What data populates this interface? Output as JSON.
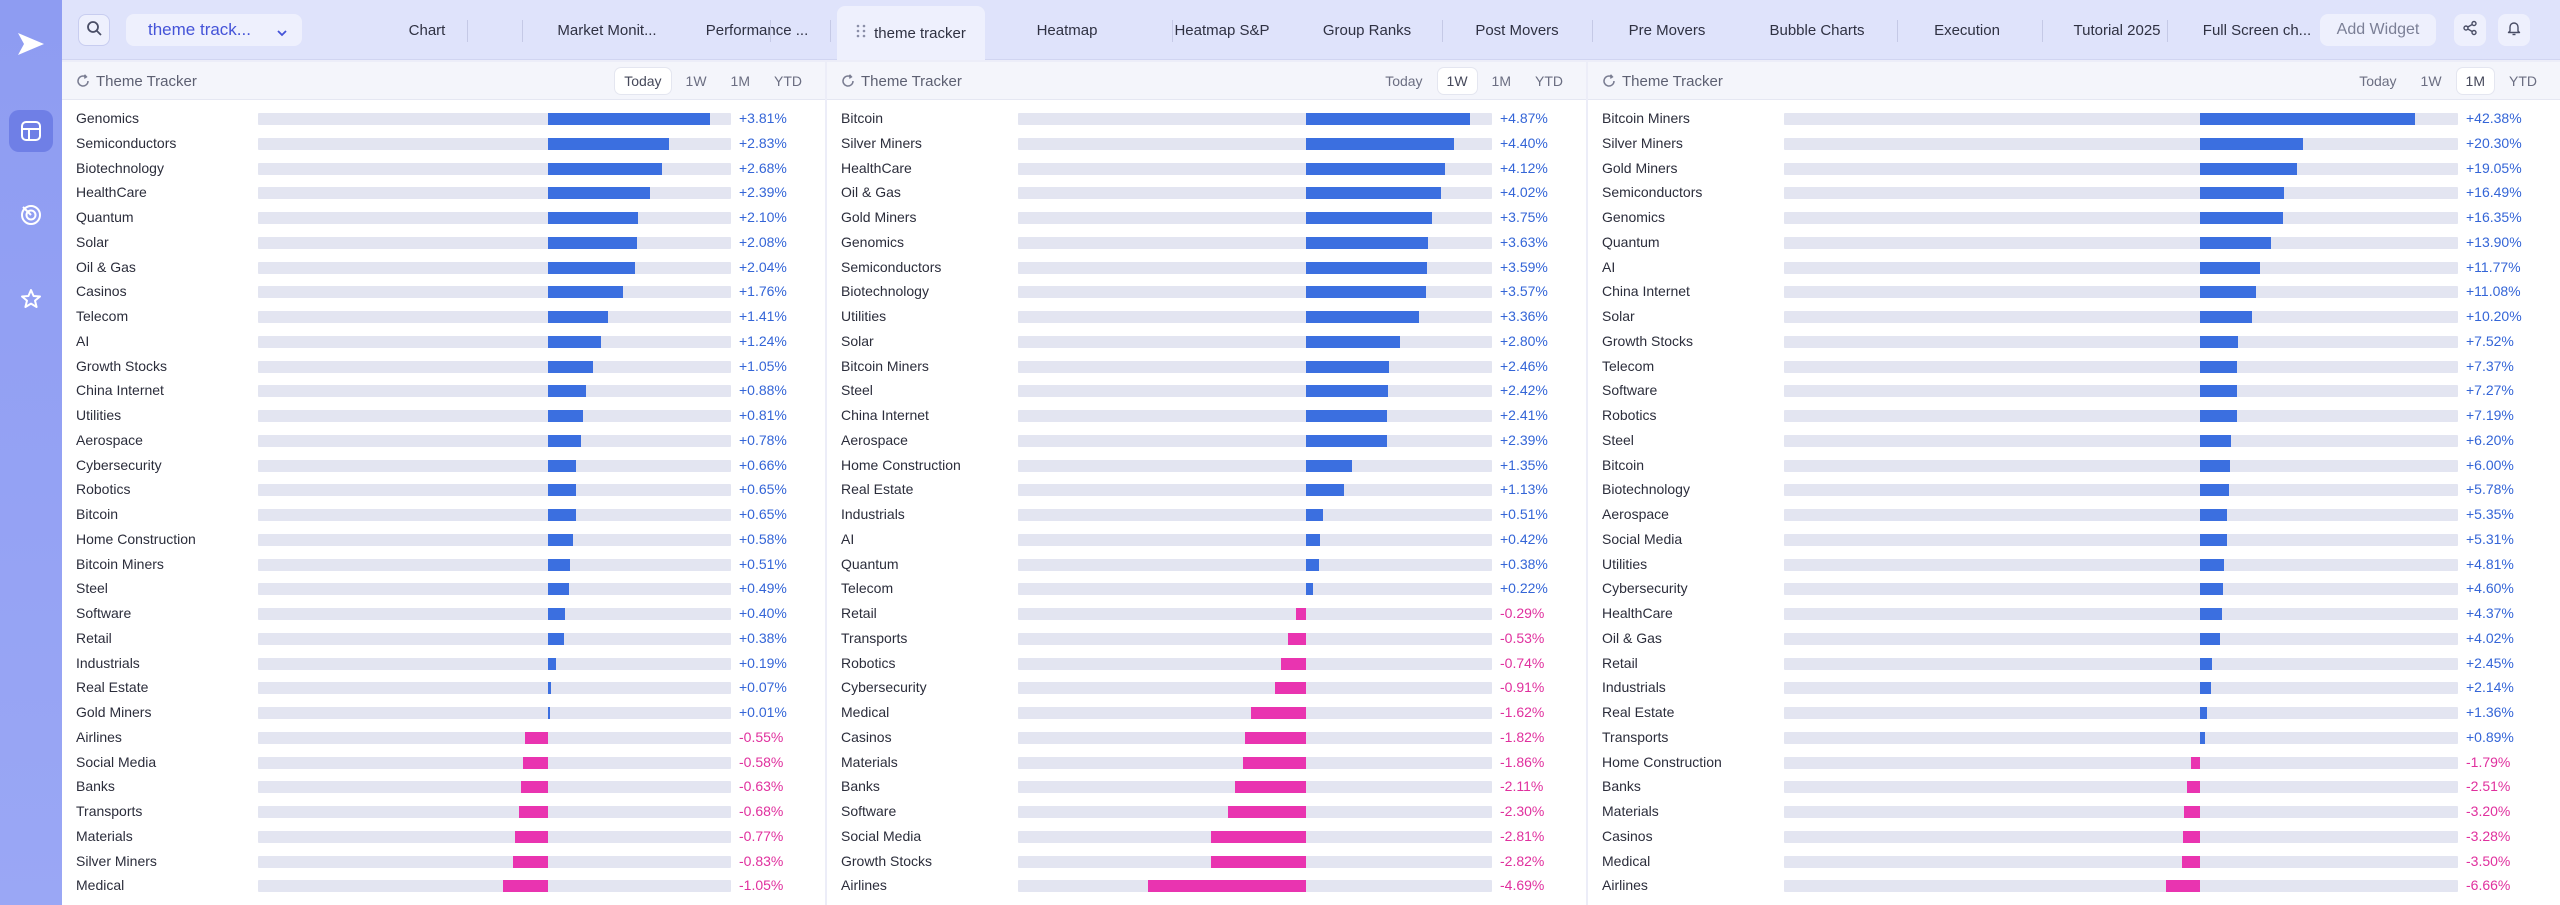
{
  "rail": {
    "items": [
      "logo-icon",
      "dashboard-icon",
      "radar-icon",
      "star-icon"
    ]
  },
  "topbar": {
    "workspace": "theme track...",
    "add_widget": "Add Widget",
    "tabs": [
      {
        "label": "Chart"
      },
      {
        "label": "Market Monit..."
      },
      {
        "label": "Performance ..."
      },
      {
        "label": "theme tracker",
        "active": true
      },
      {
        "label": "Heatmap"
      },
      {
        "label": "Heatmap S&P"
      },
      {
        "label": "Group Ranks"
      },
      {
        "label": "Post Movers"
      },
      {
        "label": "Pre Movers"
      },
      {
        "label": "Bubble Charts"
      },
      {
        "label": "Execution"
      },
      {
        "label": "Tutorial 2025"
      },
      {
        "label": "Full Screen ch..."
      }
    ]
  },
  "colors": {
    "positive": "#3b6fe0",
    "negative": "#e934b0",
    "rail": "#8e9cf2",
    "tab_active_text": "#4453d8"
  },
  "panels": [
    {
      "title": "Theme Tracker",
      "periods": [
        "Today",
        "1W",
        "1M",
        "YTD"
      ],
      "active_period": "Today",
      "max_abs": 4.2,
      "rows": [
        {
          "name": "Genomics",
          "value": 3.81,
          "label": "+3.81%"
        },
        {
          "name": "Semiconductors",
          "value": 2.83,
          "label": "+2.83%"
        },
        {
          "name": "Biotechnology",
          "value": 2.68,
          "label": "+2.68%"
        },
        {
          "name": "HealthCare",
          "value": 2.39,
          "label": "+2.39%"
        },
        {
          "name": "Quantum",
          "value": 2.1,
          "label": "+2.10%"
        },
        {
          "name": "Solar",
          "value": 2.08,
          "label": "+2.08%"
        },
        {
          "name": "Oil & Gas",
          "value": 2.04,
          "label": "+2.04%"
        },
        {
          "name": "Casinos",
          "value": 1.76,
          "label": "+1.76%"
        },
        {
          "name": "Telecom",
          "value": 1.41,
          "label": "+1.41%"
        },
        {
          "name": "AI",
          "value": 1.24,
          "label": "+1.24%"
        },
        {
          "name": "Growth Stocks",
          "value": 1.05,
          "label": "+1.05%"
        },
        {
          "name": "China Internet",
          "value": 0.88,
          "label": "+0.88%"
        },
        {
          "name": "Utilities",
          "value": 0.81,
          "label": "+0.81%"
        },
        {
          "name": "Aerospace",
          "value": 0.78,
          "label": "+0.78%"
        },
        {
          "name": "Cybersecurity",
          "value": 0.66,
          "label": "+0.66%"
        },
        {
          "name": "Robotics",
          "value": 0.65,
          "label": "+0.65%"
        },
        {
          "name": "Bitcoin",
          "value": 0.65,
          "label": "+0.65%"
        },
        {
          "name": "Home Construction",
          "value": 0.58,
          "label": "+0.58%"
        },
        {
          "name": "Bitcoin Miners",
          "value": 0.51,
          "label": "+0.51%"
        },
        {
          "name": "Steel",
          "value": 0.49,
          "label": "+0.49%"
        },
        {
          "name": "Software",
          "value": 0.4,
          "label": "+0.40%"
        },
        {
          "name": "Retail",
          "value": 0.38,
          "label": "+0.38%"
        },
        {
          "name": "Industrials",
          "value": 0.19,
          "label": "+0.19%"
        },
        {
          "name": "Real Estate",
          "value": 0.07,
          "label": "+0.07%"
        },
        {
          "name": "Gold Miners",
          "value": 0.01,
          "label": "+0.01%"
        },
        {
          "name": "Airlines",
          "value": -0.55,
          "label": "-0.55%"
        },
        {
          "name": "Social Media",
          "value": -0.58,
          "label": "-0.58%"
        },
        {
          "name": "Banks",
          "value": -0.63,
          "label": "-0.63%"
        },
        {
          "name": "Transports",
          "value": -0.68,
          "label": "-0.68%"
        },
        {
          "name": "Materials",
          "value": -0.77,
          "label": "-0.77%"
        },
        {
          "name": "Silver Miners",
          "value": -0.83,
          "label": "-0.83%"
        },
        {
          "name": "Medical",
          "value": -1.05,
          "label": "-1.05%"
        }
      ]
    },
    {
      "title": "Theme Tracker",
      "periods": [
        "Today",
        "1W",
        "1M",
        "YTD"
      ],
      "active_period": "1W",
      "max_abs": 5.4,
      "rows": [
        {
          "name": "Bitcoin",
          "value": 4.87,
          "label": "+4.87%"
        },
        {
          "name": "Silver Miners",
          "value": 4.4,
          "label": "+4.40%"
        },
        {
          "name": "HealthCare",
          "value": 4.12,
          "label": "+4.12%"
        },
        {
          "name": "Oil & Gas",
          "value": 4.02,
          "label": "+4.02%"
        },
        {
          "name": "Gold Miners",
          "value": 3.75,
          "label": "+3.75%"
        },
        {
          "name": "Genomics",
          "value": 3.63,
          "label": "+3.63%"
        },
        {
          "name": "Semiconductors",
          "value": 3.59,
          "label": "+3.59%"
        },
        {
          "name": "Biotechnology",
          "value": 3.57,
          "label": "+3.57%"
        },
        {
          "name": "Utilities",
          "value": 3.36,
          "label": "+3.36%"
        },
        {
          "name": "Solar",
          "value": 2.8,
          "label": "+2.80%"
        },
        {
          "name": "Bitcoin Miners",
          "value": 2.46,
          "label": "+2.46%"
        },
        {
          "name": "Steel",
          "value": 2.42,
          "label": "+2.42%"
        },
        {
          "name": "China Internet",
          "value": 2.41,
          "label": "+2.41%"
        },
        {
          "name": "Aerospace",
          "value": 2.39,
          "label": "+2.39%"
        },
        {
          "name": "Home Construction",
          "value": 1.35,
          "label": "+1.35%"
        },
        {
          "name": "Real Estate",
          "value": 1.13,
          "label": "+1.13%"
        },
        {
          "name": "Industrials",
          "value": 0.51,
          "label": "+0.51%"
        },
        {
          "name": "AI",
          "value": 0.42,
          "label": "+0.42%"
        },
        {
          "name": "Quantum",
          "value": 0.38,
          "label": "+0.38%"
        },
        {
          "name": "Telecom",
          "value": 0.22,
          "label": "+0.22%"
        },
        {
          "name": "Retail",
          "value": -0.29,
          "label": "-0.29%"
        },
        {
          "name": "Transports",
          "value": -0.53,
          "label": "-0.53%"
        },
        {
          "name": "Robotics",
          "value": -0.74,
          "label": "-0.74%"
        },
        {
          "name": "Cybersecurity",
          "value": -0.91,
          "label": "-0.91%"
        },
        {
          "name": "Medical",
          "value": -1.62,
          "label": "-1.62%"
        },
        {
          "name": "Casinos",
          "value": -1.82,
          "label": "-1.82%"
        },
        {
          "name": "Materials",
          "value": -1.86,
          "label": "-1.86%"
        },
        {
          "name": "Banks",
          "value": -2.11,
          "label": "-2.11%"
        },
        {
          "name": "Software",
          "value": -2.3,
          "label": "-2.30%"
        },
        {
          "name": "Social Media",
          "value": -2.81,
          "label": "-2.81%"
        },
        {
          "name": "Growth Stocks",
          "value": -2.82,
          "label": "-2.82%"
        },
        {
          "name": "Airlines",
          "value": -4.69,
          "label": "-4.69%"
        }
      ]
    },
    {
      "title": "Theme Tracker",
      "periods": [
        "Today",
        "1W",
        "1M",
        "YTD"
      ],
      "active_period": "1M",
      "max_abs": 50,
      "rows": [
        {
          "name": "Bitcoin Miners",
          "value": 42.38,
          "label": "+42.38%"
        },
        {
          "name": "Silver Miners",
          "value": 20.3,
          "label": "+20.30%"
        },
        {
          "name": "Gold Miners",
          "value": 19.05,
          "label": "+19.05%"
        },
        {
          "name": "Semiconductors",
          "value": 16.49,
          "label": "+16.49%"
        },
        {
          "name": "Genomics",
          "value": 16.35,
          "label": "+16.35%"
        },
        {
          "name": "Quantum",
          "value": 13.9,
          "label": "+13.90%"
        },
        {
          "name": "AI",
          "value": 11.77,
          "label": "+11.77%"
        },
        {
          "name": "China Internet",
          "value": 11.08,
          "label": "+11.08%"
        },
        {
          "name": "Solar",
          "value": 10.2,
          "label": "+10.20%"
        },
        {
          "name": "Growth Stocks",
          "value": 7.52,
          "label": "+7.52%"
        },
        {
          "name": "Telecom",
          "value": 7.37,
          "label": "+7.37%"
        },
        {
          "name": "Software",
          "value": 7.27,
          "label": "+7.27%"
        },
        {
          "name": "Robotics",
          "value": 7.19,
          "label": "+7.19%"
        },
        {
          "name": "Steel",
          "value": 6.2,
          "label": "+6.20%"
        },
        {
          "name": "Bitcoin",
          "value": 6.0,
          "label": "+6.00%"
        },
        {
          "name": "Biotechnology",
          "value": 5.78,
          "label": "+5.78%"
        },
        {
          "name": "Aerospace",
          "value": 5.35,
          "label": "+5.35%"
        },
        {
          "name": "Social Media",
          "value": 5.31,
          "label": "+5.31%"
        },
        {
          "name": "Utilities",
          "value": 4.81,
          "label": "+4.81%"
        },
        {
          "name": "Cybersecurity",
          "value": 4.6,
          "label": "+4.60%"
        },
        {
          "name": "HealthCare",
          "value": 4.37,
          "label": "+4.37%"
        },
        {
          "name": "Oil & Gas",
          "value": 4.02,
          "label": "+4.02%"
        },
        {
          "name": "Retail",
          "value": 2.45,
          "label": "+2.45%"
        },
        {
          "name": "Industrials",
          "value": 2.14,
          "label": "+2.14%"
        },
        {
          "name": "Real Estate",
          "value": 1.36,
          "label": "+1.36%"
        },
        {
          "name": "Transports",
          "value": 0.89,
          "label": "+0.89%"
        },
        {
          "name": "Home Construction",
          "value": -1.79,
          "label": "-1.79%"
        },
        {
          "name": "Banks",
          "value": -2.51,
          "label": "-2.51%"
        },
        {
          "name": "Materials",
          "value": -3.2,
          "label": "-3.20%"
        },
        {
          "name": "Casinos",
          "value": -3.28,
          "label": "-3.28%"
        },
        {
          "name": "Medical",
          "value": -3.5,
          "label": "-3.50%"
        },
        {
          "name": "Airlines",
          "value": -6.66,
          "label": "-6.66%"
        }
      ]
    }
  ]
}
